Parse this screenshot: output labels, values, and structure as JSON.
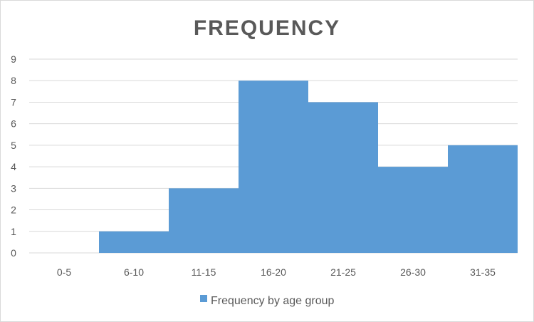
{
  "chart_data": {
    "type": "bar",
    "title": "FREQUENCY",
    "categories": [
      "0-5",
      "6-10",
      "11-15",
      "16-20",
      "21-25",
      "26-30",
      "31-35"
    ],
    "series": [
      {
        "name": "Frequency by age group",
        "values": [
          0,
          1,
          3,
          8,
          7,
          4,
          5
        ]
      }
    ],
    "xlabel": "",
    "ylabel": "",
    "ylim": [
      0,
      9
    ],
    "yticks": [
      "0",
      "1",
      "2",
      "3",
      "4",
      "5",
      "6",
      "7",
      "8",
      "9"
    ],
    "grid": true,
    "bar_gap": "none",
    "legend_position": "bottom",
    "colors": {
      "bar": "#5b9bd5",
      "grid": "#d9d9d9",
      "text": "#595959"
    }
  }
}
